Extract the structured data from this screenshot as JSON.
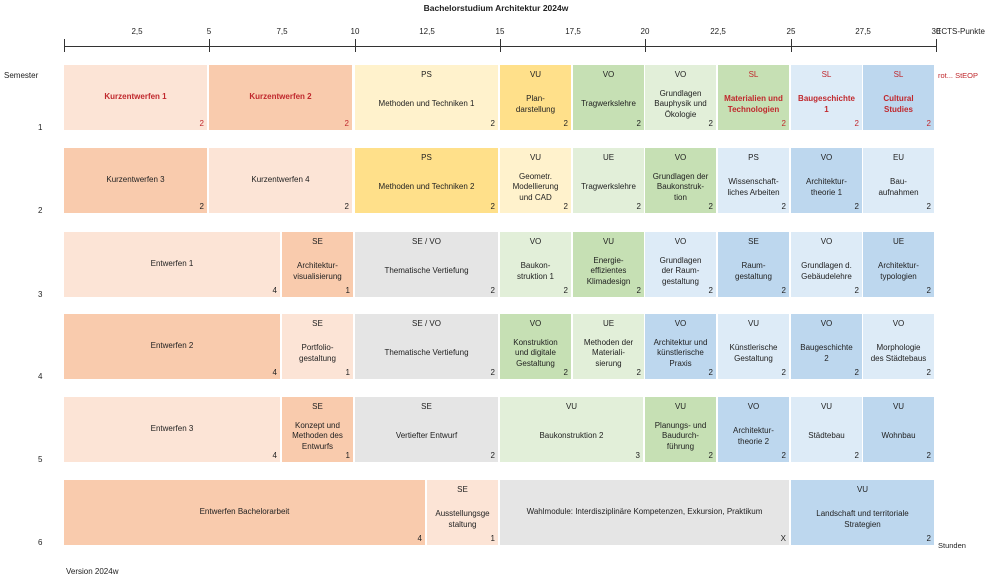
{
  "title": "Bachelorstudium Architektur 2024w",
  "ects_label": "ECTS-Punkte",
  "semester_header": "Semester",
  "rot_label": "rot... StEOP",
  "stunden_label": "Stunden",
  "version": "Version 2024w",
  "ticks": [
    "2,5",
    "5",
    "7,5",
    "10",
    "12,5",
    "15",
    "17,5",
    "20",
    "22,5",
    "25",
    "27,5",
    "30"
  ],
  "semester_numbers": [
    "1",
    "2",
    "3",
    "4",
    "5",
    "6"
  ],
  "colors": {
    "salmon": "#f9cbad",
    "peach": "#fce4d6",
    "cream": "#fff2cc",
    "yellow": "#ffe08a",
    "green": "#c6e0b4",
    "ltgreen": "#e2efd9",
    "ltblue": "#ddebf7",
    "blue": "#bdd7ee",
    "gray": "#e5e5e5",
    "steop_red": "#c0282d"
  },
  "rows": [
    {
      "semester": "1",
      "cells": [
        {
          "ects_start": 0,
          "ects_end": 5,
          "type": "",
          "name": "Kurzentwerfen 1",
          "hours": "2",
          "color": "peach",
          "sl": true
        },
        {
          "ects_start": 5,
          "ects_end": 10,
          "type": "",
          "name": "Kurzentwerfen 2",
          "hours": "2",
          "color": "salmon",
          "sl": true
        },
        {
          "ects_start": 10,
          "ects_end": 15,
          "type": "PS",
          "name": "Methoden und Techniken 1",
          "hours": "2",
          "color": "cream",
          "sl": false
        },
        {
          "ects_start": 15,
          "ects_end": 17.5,
          "type": "VU",
          "name": "Plan-\ndarstellung",
          "hours": "2",
          "color": "yellow",
          "sl": false
        },
        {
          "ects_start": 17.5,
          "ects_end": 20,
          "type": "VO",
          "name": "Tragwerkslehre",
          "hours": "2",
          "color": "green",
          "sl": false
        },
        {
          "ects_start": 20,
          "ects_end": 22.5,
          "type": "VO",
          "name": "Grundlagen\nBauphysik und\nÖkologie",
          "hours": "2",
          "color": "ltgreen",
          "sl": false
        },
        {
          "ects_start": 22.5,
          "ects_end": 25,
          "type": "SL",
          "name": "Materialien und\nTechnologien",
          "hours": "2",
          "color": "green",
          "sl": true
        },
        {
          "ects_start": 25,
          "ects_end": 27.5,
          "type": "SL",
          "name": "Baugeschichte\n1",
          "hours": "2",
          "color": "ltblue",
          "sl": true
        },
        {
          "ects_start": 27.5,
          "ects_end": 30,
          "type": "SL",
          "name": "Cultural\nStudies",
          "hours": "2",
          "color": "blue",
          "sl": true
        }
      ]
    },
    {
      "semester": "2",
      "cells": [
        {
          "ects_start": 0,
          "ects_end": 5,
          "type": "",
          "name": "Kurzentwerfen 3",
          "hours": "2",
          "color": "salmon",
          "sl": false
        },
        {
          "ects_start": 5,
          "ects_end": 10,
          "type": "",
          "name": "Kurzentwerfen 4",
          "hours": "2",
          "color": "peach",
          "sl": false
        },
        {
          "ects_start": 10,
          "ects_end": 15,
          "type": "PS",
          "name": "Methoden und Techniken 2",
          "hours": "2",
          "color": "yellow",
          "sl": false
        },
        {
          "ects_start": 15,
          "ects_end": 17.5,
          "type": "VU",
          "name": "Geometr.\nModellierung\nund CAD",
          "hours": "2",
          "color": "cream",
          "sl": false
        },
        {
          "ects_start": 17.5,
          "ects_end": 20,
          "type": "UE",
          "name": "Tragwerkslehre",
          "hours": "2",
          "color": "ltgreen",
          "sl": false
        },
        {
          "ects_start": 20,
          "ects_end": 22.5,
          "type": "VO",
          "name": "Grundlagen der\nBaukonstruk-\ntion",
          "hours": "2",
          "color": "green",
          "sl": false
        },
        {
          "ects_start": 22.5,
          "ects_end": 25,
          "type": "PS",
          "name": "Wissenschaft-\nliches Arbeiten",
          "hours": "2",
          "color": "ltblue",
          "sl": false
        },
        {
          "ects_start": 25,
          "ects_end": 27.5,
          "type": "VO",
          "name": "Architektur-\ntheorie 1",
          "hours": "2",
          "color": "blue",
          "sl": false
        },
        {
          "ects_start": 27.5,
          "ects_end": 30,
          "type": "EU",
          "name": "Bau-\naufnahmen",
          "hours": "2",
          "color": "ltblue",
          "sl": false
        }
      ]
    },
    {
      "semester": "3",
      "cells": [
        {
          "ects_start": 0,
          "ects_end": 7.5,
          "type": "",
          "name": "Entwerfen 1",
          "hours": "4",
          "color": "peach",
          "sl": false
        },
        {
          "ects_start": 7.5,
          "ects_end": 10,
          "type": "SE",
          "name": "Architektur-\nvisualisierung",
          "hours": "1",
          "color": "salmon",
          "sl": false
        },
        {
          "ects_start": 10,
          "ects_end": 15,
          "type": "SE / VO",
          "name": "Thematische Vertiefung",
          "hours": "2",
          "color": "gray",
          "sl": false
        },
        {
          "ects_start": 15,
          "ects_end": 17.5,
          "type": "VO",
          "name": "Baukon-\nstruktion 1",
          "hours": "2",
          "color": "ltgreen",
          "sl": false
        },
        {
          "ects_start": 17.5,
          "ects_end": 20,
          "type": "VU",
          "name": "Energie-\neffizientes\nKlimadesign",
          "hours": "2",
          "color": "green",
          "sl": false
        },
        {
          "ects_start": 20,
          "ects_end": 22.5,
          "type": "VO",
          "name": "Grundlagen\nder Raum-\ngestaltung",
          "hours": "2",
          "color": "ltblue",
          "sl": false
        },
        {
          "ects_start": 22.5,
          "ects_end": 25,
          "type": "SE",
          "name": "Raum-\ngestaltung",
          "hours": "2",
          "color": "blue",
          "sl": false
        },
        {
          "ects_start": 25,
          "ects_end": 27.5,
          "type": "VO",
          "name": "Grundlagen d.\nGebäudelehre",
          "hours": "2",
          "color": "ltblue",
          "sl": false
        },
        {
          "ects_start": 27.5,
          "ects_end": 30,
          "type": "UE",
          "name": "Architektur-\ntypologien",
          "hours": "2",
          "color": "blue",
          "sl": false
        }
      ]
    },
    {
      "semester": "4",
      "cells": [
        {
          "ects_start": 0,
          "ects_end": 7.5,
          "type": "",
          "name": "Entwerfen 2",
          "hours": "4",
          "color": "salmon",
          "sl": false
        },
        {
          "ects_start": 7.5,
          "ects_end": 10,
          "type": "SE",
          "name": "Portfolio-\ngestaltung",
          "hours": "1",
          "color": "peach",
          "sl": false
        },
        {
          "ects_start": 10,
          "ects_end": 15,
          "type": "SE / VO",
          "name": "Thematische Vertiefung",
          "hours": "2",
          "color": "gray",
          "sl": false
        },
        {
          "ects_start": 15,
          "ects_end": 17.5,
          "type": "VO",
          "name": "Konstruktion\nund digitale\nGestaltung",
          "hours": "2",
          "color": "green",
          "sl": false
        },
        {
          "ects_start": 17.5,
          "ects_end": 20,
          "type": "UE",
          "name": "Methoden der\nMateriali-\nsierung",
          "hours": "2",
          "color": "ltgreen",
          "sl": false
        },
        {
          "ects_start": 20,
          "ects_end": 22.5,
          "type": "VO",
          "name": "Architektur und\nkünstlerische\nPraxis",
          "hours": "2",
          "color": "blue",
          "sl": false
        },
        {
          "ects_start": 22.5,
          "ects_end": 25,
          "type": "VU",
          "name": "Künstlerische\nGestaltung",
          "hours": "2",
          "color": "ltblue",
          "sl": false
        },
        {
          "ects_start": 25,
          "ects_end": 27.5,
          "type": "VO",
          "name": "Baugeschichte\n2",
          "hours": "2",
          "color": "blue",
          "sl": false
        },
        {
          "ects_start": 27.5,
          "ects_end": 30,
          "type": "VO",
          "name": "Morphologie\ndes Städtebaus",
          "hours": "2",
          "color": "ltblue",
          "sl": false
        }
      ]
    },
    {
      "semester": "5",
      "cells": [
        {
          "ects_start": 0,
          "ects_end": 7.5,
          "type": "",
          "name": "Entwerfen 3",
          "hours": "4",
          "color": "peach",
          "sl": false
        },
        {
          "ects_start": 7.5,
          "ects_end": 10,
          "type": "SE",
          "name": "Konzept und\nMethoden des\nEntwurfs",
          "hours": "1",
          "color": "salmon",
          "sl": false
        },
        {
          "ects_start": 10,
          "ects_end": 15,
          "type": "SE",
          "name": "Vertiefter Entwurf",
          "hours": "2",
          "color": "gray",
          "sl": false
        },
        {
          "ects_start": 15,
          "ects_end": 20,
          "type": "VU",
          "name": "Baukonstruktion 2",
          "hours": "3",
          "color": "ltgreen",
          "sl": false
        },
        {
          "ects_start": 20,
          "ects_end": 22.5,
          "type": "VU",
          "name": "Planungs- und\nBaudurch-\nführung",
          "hours": "2",
          "color": "green",
          "sl": false
        },
        {
          "ects_start": 22.5,
          "ects_end": 25,
          "type": "VO",
          "name": "Architektur-\ntheorie 2",
          "hours": "2",
          "color": "blue",
          "sl": false
        },
        {
          "ects_start": 25,
          "ects_end": 27.5,
          "type": "VU",
          "name": "Städtebau",
          "hours": "2",
          "color": "ltblue",
          "sl": false
        },
        {
          "ects_start": 27.5,
          "ects_end": 30,
          "type": "VU",
          "name": "Wohnbau",
          "hours": "2",
          "color": "blue",
          "sl": false
        }
      ]
    },
    {
      "semester": "6",
      "cells": [
        {
          "ects_start": 0,
          "ects_end": 12.5,
          "type": "",
          "name": "Entwerfen Bachelorarbeit",
          "hours": "4",
          "color": "salmon",
          "sl": false
        },
        {
          "ects_start": 12.5,
          "ects_end": 15,
          "type": "SE",
          "name": "Ausstellungsge\nstaltung",
          "hours": "1",
          "color": "peach",
          "sl": false
        },
        {
          "ects_start": 15,
          "ects_end": 25,
          "type": "",
          "name": "Wahlmodule: Interdisziplinäre Kompetenzen, Exkursion, Praktikum",
          "hours": "X",
          "color": "gray",
          "sl": false
        },
        {
          "ects_start": 25,
          "ects_end": 30,
          "type": "VU",
          "name": "Landschaft und territoriale\nStrategien",
          "hours": "2",
          "color": "blue",
          "sl": false
        }
      ]
    }
  ]
}
